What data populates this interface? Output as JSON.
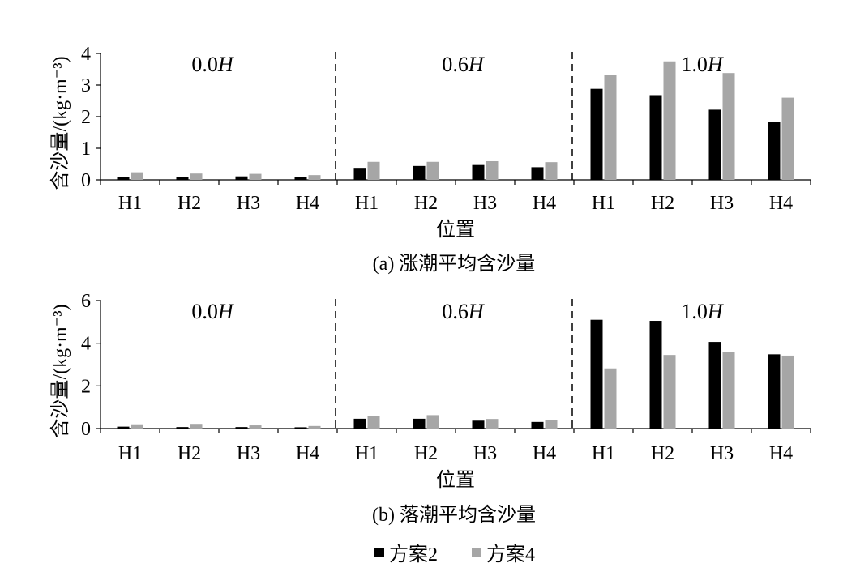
{
  "chart_data": [
    {
      "type": "bar",
      "caption": "(a) 涨潮平均含沙量",
      "ylabel": "含沙量/(kg·m⁻³)",
      "xlabel": "位置",
      "ylim": [
        0,
        4
      ],
      "yticks": [
        "0",
        "1",
        "2",
        "3",
        "4"
      ],
      "groups": [
        {
          "label": "0.0",
          "italic": "H",
          "categories": [
            "H1",
            "H2",
            "H3",
            "H4"
          ]
        },
        {
          "label": "0.6",
          "italic": "H",
          "categories": [
            "H1",
            "H2",
            "H3",
            "H4"
          ]
        },
        {
          "label": "1.0",
          "italic": "H",
          "categories": [
            "H1",
            "H2",
            "H3",
            "H4"
          ]
        }
      ],
      "series": [
        {
          "name": "方案2",
          "color": "#000000",
          "values": [
            0.08,
            0.09,
            0.11,
            0.09,
            0.38,
            0.44,
            0.47,
            0.4,
            2.88,
            2.68,
            2.22,
            1.83
          ]
        },
        {
          "name": "方案4",
          "color": "#a6a6a6",
          "values": [
            0.24,
            0.2,
            0.19,
            0.15,
            0.57,
            0.57,
            0.59,
            0.56,
            3.33,
            3.75,
            3.38,
            2.6
          ]
        }
      ],
      "grid": false
    },
    {
      "type": "bar",
      "caption": "(b) 落潮平均含沙量",
      "ylabel": "含沙量/(kg·m⁻³)",
      "xlabel": "位置",
      "ylim": [
        0,
        6
      ],
      "yticks": [
        "0",
        "2",
        "4",
        "6"
      ],
      "groups": [
        {
          "label": "0.0",
          "italic": "H",
          "categories": [
            "H1",
            "H2",
            "H3",
            "H4"
          ]
        },
        {
          "label": "0.6",
          "italic": "H",
          "categories": [
            "H1",
            "H2",
            "H3",
            "H4"
          ]
        },
        {
          "label": "1.0",
          "italic": "H",
          "categories": [
            "H1",
            "H2",
            "H3",
            "H4"
          ]
        }
      ],
      "series": [
        {
          "name": "方案2",
          "color": "#000000",
          "values": [
            0.09,
            0.07,
            0.07,
            0.06,
            0.46,
            0.46,
            0.37,
            0.31,
            5.1,
            5.05,
            4.06,
            3.48
          ]
        },
        {
          "name": "方案4",
          "color": "#a6a6a6",
          "values": [
            0.2,
            0.22,
            0.15,
            0.12,
            0.6,
            0.63,
            0.45,
            0.41,
            2.82,
            3.45,
            3.58,
            3.42
          ]
        }
      ],
      "grid": false
    }
  ],
  "legend": [
    {
      "label": "方案2",
      "color": "#000000"
    },
    {
      "label": "方案4",
      "color": "#a6a6a6"
    }
  ]
}
